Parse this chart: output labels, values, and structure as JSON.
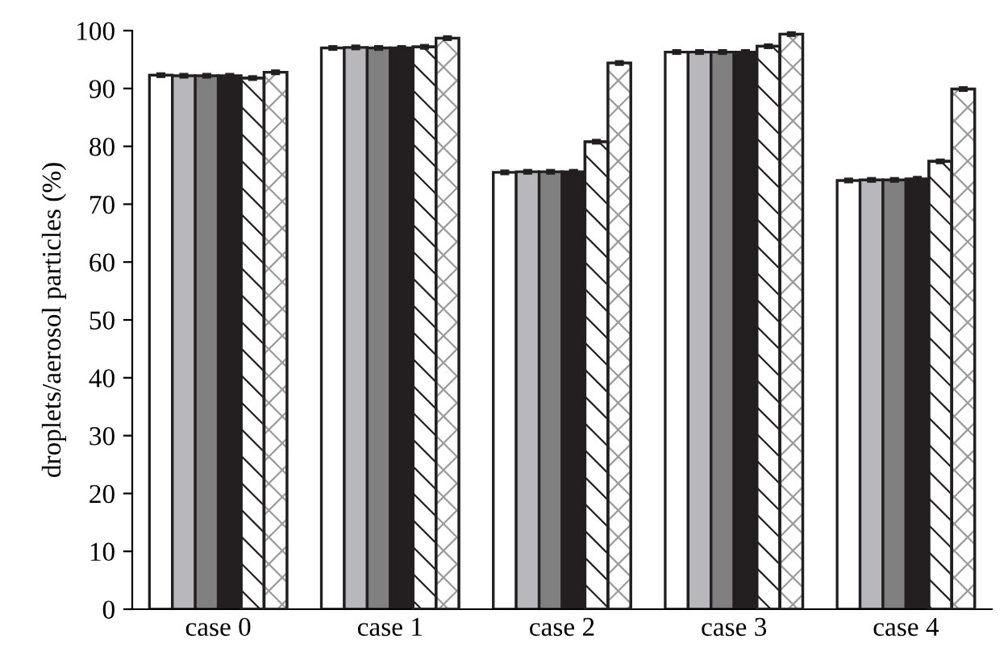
{
  "chart_data": {
    "type": "bar",
    "ylabel": "droplets/aerosol particles (%)",
    "categories": [
      "case 0",
      "case 1",
      "case 2",
      "case 3",
      "case 4"
    ],
    "ylim": [
      0,
      100
    ],
    "yticks": [
      0,
      10,
      20,
      30,
      40,
      50,
      60,
      70,
      80,
      90,
      100
    ],
    "grid": false,
    "legend": false,
    "series": [
      {
        "color": "#ffffff",
        "values": [
          92.3,
          97.0,
          75.5,
          96.3,
          74.1
        ],
        "errors": [
          0.3,
          0.3,
          0.3,
          0.3,
          0.3
        ]
      },
      {
        "color": "#b8b8bc",
        "values": [
          92.2,
          97.1,
          75.6,
          96.3,
          74.2
        ],
        "errors": [
          0.3,
          0.3,
          0.3,
          0.3,
          0.3
        ]
      },
      {
        "color": "#808080",
        "values": [
          92.2,
          97.0,
          75.6,
          96.3,
          74.2
        ],
        "errors": [
          0.3,
          0.3,
          0.3,
          0.3,
          0.3
        ]
      },
      {
        "color": "#231f20",
        "values": [
          92.2,
          97.0,
          75.6,
          96.3,
          74.4
        ],
        "errors": [
          0.3,
          0.3,
          0.3,
          0.3,
          0.3
        ]
      },
      {
        "color": "#231f20",
        "values": [
          91.8,
          97.2,
          80.8,
          97.3,
          77.4
        ],
        "errors": [
          0.3,
          0.3,
          0.3,
          0.3,
          0.3
        ]
      },
      {
        "color": "#9a9a9a",
        "values": [
          92.8,
          98.7,
          94.4,
          99.4,
          89.9
        ],
        "errors": [
          0.3,
          0.3,
          0.3,
          0.3,
          0.3
        ]
      }
    ]
  }
}
